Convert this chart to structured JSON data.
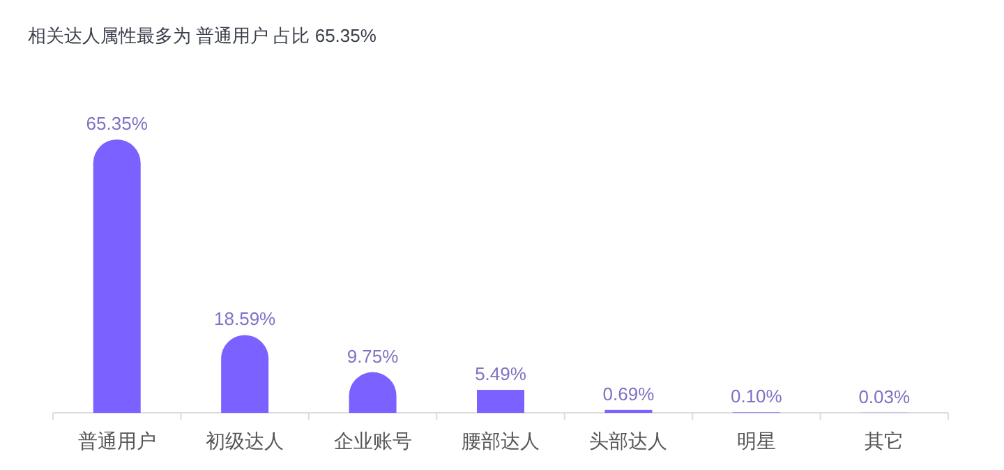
{
  "chart_data": {
    "type": "bar",
    "title": "相关达人属性最多为 普通用户 占比 65.35%",
    "categories": [
      "普通用户",
      "初级达人",
      "企业账号",
      "腰部达人",
      "头部达人",
      "明星",
      "其它"
    ],
    "values": [
      65.35,
      18.59,
      9.75,
      5.49,
      0.69,
      0.1,
      0.03
    ],
    "color": "#7b61ff",
    "value_labels": [
      "65.35%",
      "18.59%",
      "9.75%",
      "5.49%",
      "0.69%",
      "0.10%",
      "0.03%"
    ],
    "tick_labels": "x"
  }
}
